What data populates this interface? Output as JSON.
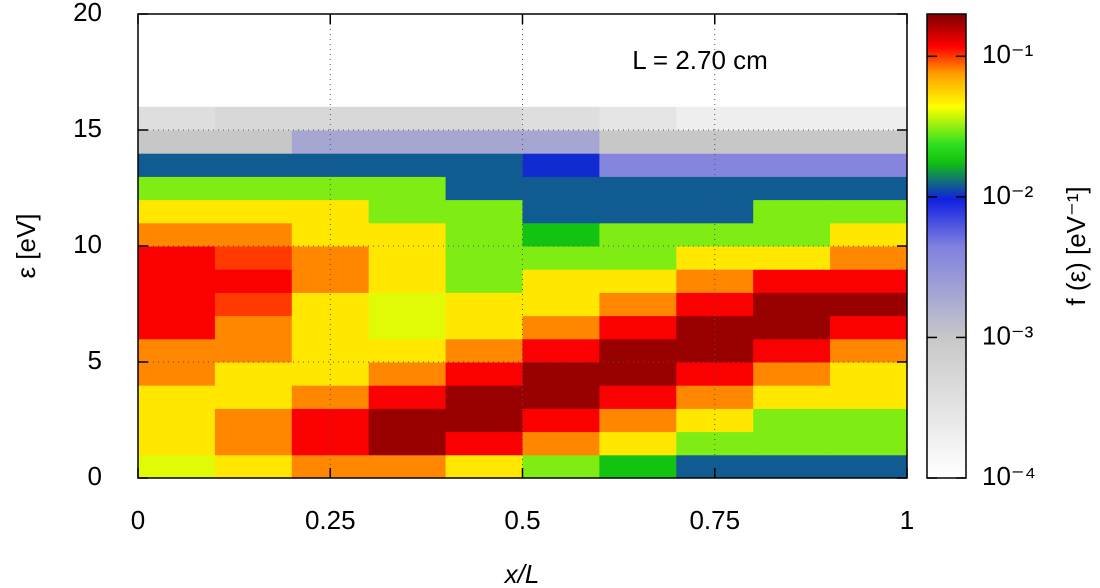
{
  "chart_data": {
    "type": "heatmap",
    "annotation": "L = 2.70 cm",
    "x_label": "x/L",
    "y_label": "ε [eV]",
    "colorbar_label": "f (ε) [eV⁻¹]",
    "x": [
      0.05,
      0.15,
      0.25,
      0.35,
      0.45,
      0.55,
      0.65,
      0.75,
      0.85,
      0.95
    ],
    "y": [
      0.5,
      1.5,
      2.5,
      3.5,
      4.5,
      5.5,
      6.5,
      7.5,
      8.5,
      9.5,
      10.5,
      11.5,
      12.5,
      13.5,
      14.5,
      15.5
    ],
    "z": [
      [
        0.04,
        0.05,
        0.08,
        0.08,
        0.05,
        0.03,
        0.018,
        0.012,
        0.012,
        0.012
      ],
      [
        0.05,
        0.08,
        0.12,
        0.18,
        0.12,
        0.08,
        0.05,
        0.03,
        0.03,
        0.03
      ],
      [
        0.05,
        0.08,
        0.12,
        0.18,
        0.18,
        0.12,
        0.08,
        0.05,
        0.03,
        0.03
      ],
      [
        0.05,
        0.05,
        0.08,
        0.12,
        0.18,
        0.18,
        0.12,
        0.08,
        0.05,
        0.05
      ],
      [
        0.08,
        0.05,
        0.05,
        0.08,
        0.12,
        0.18,
        0.18,
        0.12,
        0.08,
        0.05
      ],
      [
        0.08,
        0.08,
        0.05,
        0.05,
        0.08,
        0.12,
        0.18,
        0.18,
        0.12,
        0.08
      ],
      [
        0.12,
        0.08,
        0.05,
        0.04,
        0.05,
        0.08,
        0.12,
        0.18,
        0.18,
        0.12
      ],
      [
        0.12,
        0.1,
        0.05,
        0.04,
        0.05,
        0.05,
        0.08,
        0.12,
        0.18,
        0.18
      ],
      [
        0.12,
        0.12,
        0.08,
        0.05,
        0.03,
        0.05,
        0.05,
        0.08,
        0.12,
        0.12
      ],
      [
        0.12,
        0.1,
        0.08,
        0.05,
        0.03,
        0.03,
        0.03,
        0.05,
        0.05,
        0.08
      ],
      [
        0.08,
        0.08,
        0.05,
        0.05,
        0.03,
        0.018,
        0.03,
        0.03,
        0.03,
        0.05
      ],
      [
        0.05,
        0.05,
        0.05,
        0.03,
        0.03,
        0.012,
        0.012,
        0.012,
        0.03,
        0.03
      ],
      [
        0.03,
        0.03,
        0.03,
        0.03,
        0.012,
        0.012,
        0.012,
        0.012,
        0.012,
        0.012
      ],
      [
        0.012,
        0.012,
        0.012,
        0.012,
        0.012,
        0.01,
        0.004,
        0.004,
        0.004,
        0.004
      ],
      [
        0.001,
        0.001,
        0.002,
        0.002,
        0.002,
        0.002,
        0.001,
        0.001,
        0.001,
        0.001
      ],
      [
        0.0004,
        0.0005,
        0.0005,
        0.0005,
        0.0005,
        0.0004,
        0.0003,
        0.0002,
        0.0002,
        0.0002
      ]
    ],
    "xlim": [
      0,
      1
    ],
    "xticks": [
      0,
      0.25,
      0.5,
      0.75,
      1
    ],
    "ylim": [
      0,
      20
    ],
    "yticks": [
      0,
      5,
      10,
      15,
      20
    ],
    "grid": true,
    "color_scale": "log",
    "clim": [
      0.0001,
      0.2
    ],
    "cticks": [
      {
        "value": 0.0001,
        "label": "10⁻⁴"
      },
      {
        "value": 0.001,
        "label": "10⁻³"
      },
      {
        "value": 0.01,
        "label": "10⁻²"
      },
      {
        "value": 0.1,
        "label": "10⁻¹"
      }
    ],
    "colormap": [
      [
        0,
        "#ffffff"
      ],
      [
        0.3,
        "#c8c8c8"
      ],
      [
        0.5,
        "#8080e0"
      ],
      [
        0.6,
        "#1020e0"
      ],
      [
        0.68,
        "#10c010"
      ],
      [
        0.72,
        "#30e020"
      ],
      [
        0.8,
        "#ffff00"
      ],
      [
        0.87,
        "#ffa000"
      ],
      [
        0.93,
        "#ff0000"
      ],
      [
        1,
        "#800000"
      ]
    ]
  }
}
